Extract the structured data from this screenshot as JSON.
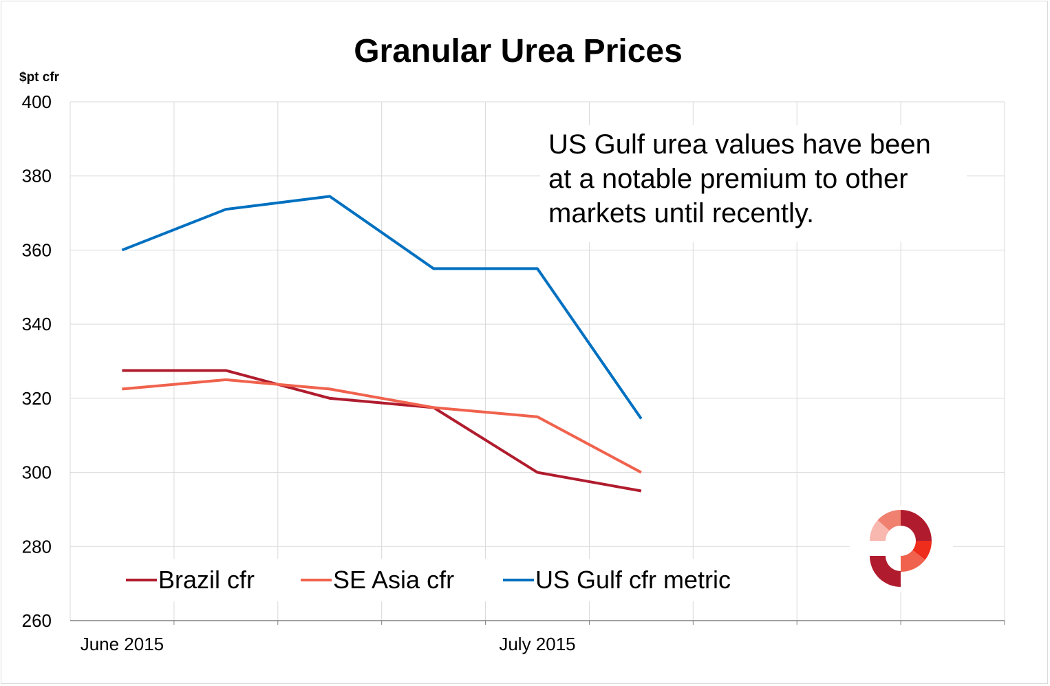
{
  "chart_data": {
    "type": "line",
    "title": "Granular Urea Prices",
    "ylabel": "$pt cfr",
    "xlabel": "",
    "ylim": [
      260,
      400
    ],
    "yticks": [
      260,
      280,
      300,
      320,
      340,
      360,
      380,
      400
    ],
    "x_category_count": 9,
    "x_tick_labels": [
      {
        "index": 0,
        "label": "June 2015"
      },
      {
        "index": 4,
        "label": "July 2015"
      }
    ],
    "grid": true,
    "legend": "bottom",
    "series": [
      {
        "name": "Brazil cfr",
        "color": "#b01c2e",
        "values": [
          327.5,
          327.5,
          320,
          317.5,
          300,
          295
        ]
      },
      {
        "name": "SE Asia cfr",
        "color": "#f0624d",
        "values": [
          322.5,
          325,
          322.5,
          317.5,
          315,
          300
        ]
      },
      {
        "name": "US Gulf cfr metric",
        "color": "#0070c0",
        "values": [
          360,
          371,
          374.5,
          355,
          355,
          314.5
        ]
      }
    ],
    "annotation": [
      "US Gulf urea values have been",
      "at a notable premium to other",
      "markets until recently."
    ]
  }
}
